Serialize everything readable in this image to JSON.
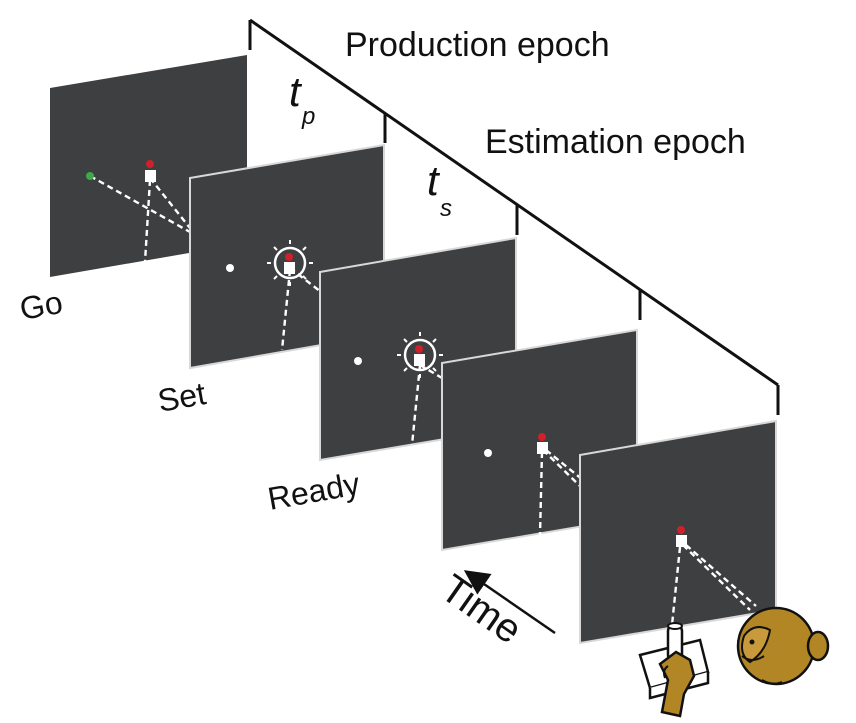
{
  "labels": {
    "production_epoch": "Production epoch",
    "estimation_epoch": "Estimation epoch",
    "tp_main": "t",
    "tp_sub": "p",
    "ts_main": "t",
    "ts_sub": "s",
    "go": "Go",
    "set": "Set",
    "ready": "Ready",
    "time": "Time"
  },
  "colors": {
    "screen": "#3d3f41",
    "fixation_red": "#d0202a",
    "go_green": "#3daa47",
    "monkey": "#b38625",
    "stimulus": "#ffffff"
  },
  "icons": [
    "monkey-icon",
    "joystick-icon",
    "time-arrow-icon"
  ]
}
